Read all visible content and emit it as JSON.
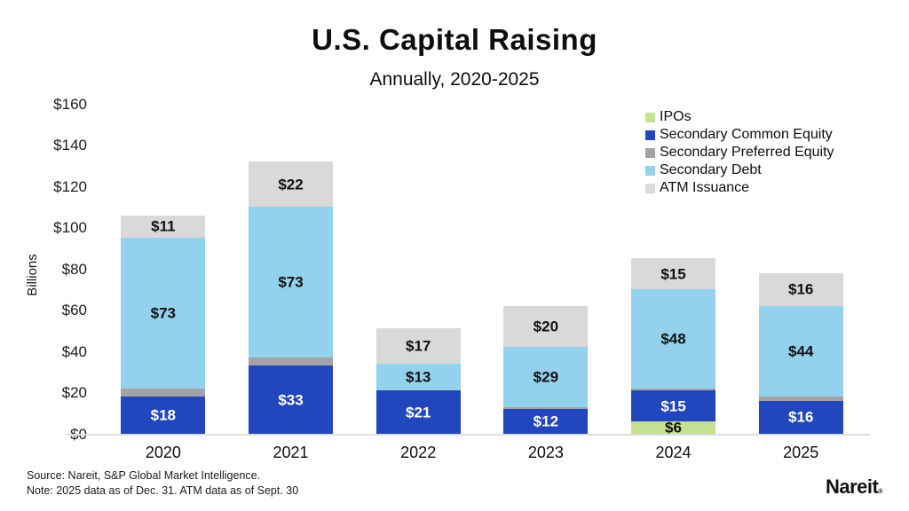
{
  "title": "U.S. Capital Raising",
  "subtitle": "Annually, 2020-2025",
  "ylabel": "Billions",
  "source": {
    "line1": "Source: Nareit, S&P Global Market Intelligence.",
    "line2": "Note: 2025 data as of Dec. 31. ATM data as of Sept. 30"
  },
  "logo": {
    "text": "Nareit",
    "mark": "®"
  },
  "colors": {
    "ipos": "#c6e094",
    "secondary_common_equity": "#2146be",
    "secondary_preferred_equity": "#a3a3a3",
    "secondary_debt": "#93d1ec",
    "atm_issuance": "#d9d9d9",
    "baseline": "#dedede"
  },
  "chart_data": {
    "type": "bar",
    "stacked": true,
    "title": "U.S. Capital Raising",
    "subtitle": "Annually, 2020-2025",
    "ylabel": "Billions",
    "ylim": [
      0,
      160
    ],
    "y_ticks": [
      "$0",
      "$20",
      "$40",
      "$60",
      "$80",
      "$100",
      "$120",
      "$140",
      "$160"
    ],
    "grid": false,
    "legend_position": "top-right",
    "categories": [
      "2020",
      "2021",
      "2022",
      "2023",
      "2024",
      "2025"
    ],
    "series": [
      {
        "name": "IPOs",
        "color_key": "ipos",
        "label_color": "#111111",
        "values": [
          0,
          0,
          0,
          0,
          6,
          0
        ],
        "labels": [
          "",
          "",
          "",
          "",
          "$6",
          ""
        ]
      },
      {
        "name": "Secondary Common Equity",
        "color_key": "secondary_common_equity",
        "label_color": "#ffffff",
        "values": [
          18,
          33,
          21,
          12,
          15,
          16
        ],
        "labels": [
          "$18",
          "$33",
          "$21",
          "$12",
          "$15",
          "$16"
        ]
      },
      {
        "name": "Secondary Preferred Equity",
        "color_key": "secondary_preferred_equity",
        "label_color": "#111111",
        "values": [
          4,
          4,
          0,
          1,
          1,
          2
        ],
        "labels": [
          "",
          "",
          "",
          "",
          "",
          ""
        ]
      },
      {
        "name": "Secondary Debt",
        "color_key": "secondary_debt",
        "label_color": "#111111",
        "values": [
          73,
          73,
          13,
          29,
          48,
          44
        ],
        "labels": [
          "$73",
          "$73",
          "$13",
          "$29",
          "$48",
          "$44"
        ]
      },
      {
        "name": "ATM Issuance",
        "color_key": "atm_issuance",
        "label_color": "#111111",
        "values": [
          11,
          22,
          17,
          20,
          15,
          16
        ],
        "labels": [
          "$11",
          "$22",
          "$17",
          "$20",
          "$15",
          "$16"
        ]
      }
    ]
  }
}
